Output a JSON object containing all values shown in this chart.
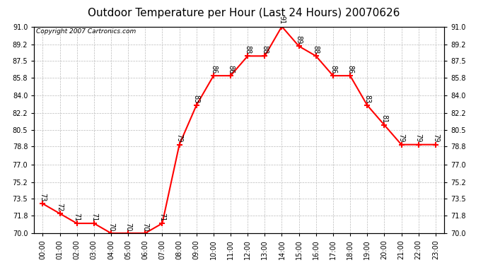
{
  "title": "Outdoor Temperature per Hour (Last 24 Hours) 20070626",
  "copyright": "Copyright 2007 Cartronics.com",
  "hours": [
    "00:00",
    "01:00",
    "02:00",
    "03:00",
    "04:00",
    "05:00",
    "06:00",
    "07:00",
    "08:00",
    "09:00",
    "10:00",
    "11:00",
    "12:00",
    "13:00",
    "14:00",
    "15:00",
    "16:00",
    "17:00",
    "18:00",
    "19:00",
    "20:00",
    "21:00",
    "22:00",
    "23:00"
  ],
  "temps": [
    73,
    72,
    71,
    71,
    70,
    70,
    70,
    71,
    79,
    83,
    86,
    86,
    88,
    88,
    91,
    89,
    88,
    86,
    86,
    83,
    81,
    79,
    79,
    79
  ],
  "ylim_min": 70.0,
  "ylim_max": 91.0,
  "yticks": [
    70.0,
    71.8,
    73.5,
    75.2,
    77.0,
    78.8,
    80.5,
    82.2,
    84.0,
    85.8,
    87.5,
    89.2,
    91.0
  ],
  "line_color": "red",
  "marker": "+",
  "marker_size": 6,
  "marker_linewidth": 1.5,
  "line_width": 1.5,
  "grid_color": "#bbbbbb",
  "grid_linestyle": "--",
  "bg_color": "white",
  "title_fontsize": 11,
  "copyright_fontsize": 6.5,
  "label_fontsize": 7,
  "tick_fontsize": 7
}
